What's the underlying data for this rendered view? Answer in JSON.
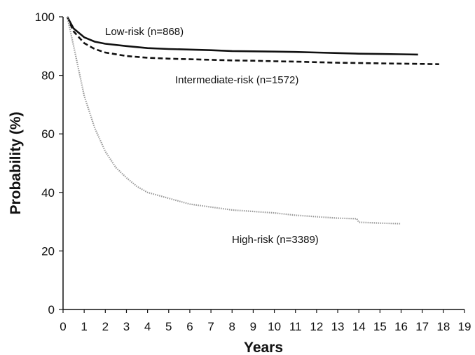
{
  "chart_data": {
    "type": "line",
    "title": "",
    "xlabel": "Years",
    "ylabel": "Probability (%)",
    "xlim": [
      0,
      19
    ],
    "ylim": [
      0,
      100
    ],
    "x_ticks": [
      "0",
      "1",
      "2",
      "3",
      "4",
      "5",
      "6",
      "7",
      "8",
      "9",
      "10",
      "11",
      "12",
      "13",
      "14",
      "15",
      "16",
      "17",
      "18",
      "19"
    ],
    "y_ticks": [
      "0",
      "20",
      "40",
      "60",
      "80",
      "100"
    ],
    "grid": false,
    "legend": "none",
    "series": [
      {
        "name": "Low-risk (n=868)",
        "line_style": "solid",
        "color": "#111111",
        "x": [
          0.2,
          0.5,
          1,
          1.5,
          2,
          3,
          4,
          5,
          6,
          7,
          8,
          9,
          10,
          11,
          12,
          13,
          14,
          15,
          16,
          16.8
        ],
        "y": [
          100,
          96,
          93,
          91.5,
          90.8,
          90,
          89.3,
          89,
          88.8,
          88.6,
          88.3,
          88.2,
          88.1,
          88,
          87.8,
          87.6,
          87.4,
          87.3,
          87.2,
          87.1
        ]
      },
      {
        "name": "Intermediate-risk (n=1572)",
        "line_style": "dashed",
        "color": "#111111",
        "x": [
          0.2,
          0.5,
          1,
          1.5,
          2,
          3,
          4,
          5,
          6,
          7,
          8,
          9,
          10,
          11,
          12,
          13,
          14,
          15,
          16,
          17,
          17.8
        ],
        "y": [
          100,
          95,
          91,
          89,
          87.8,
          86.6,
          86,
          85.7,
          85.5,
          85.3,
          85.1,
          85,
          84.8,
          84.7,
          84.5,
          84.3,
          84.2,
          84.1,
          84,
          83.9,
          83.8
        ]
      },
      {
        "name": "High-risk (n=3389)",
        "line_style": "dotted",
        "color": "#9a9a9a",
        "x": [
          0.2,
          0.5,
          1,
          1.5,
          2,
          2.5,
          3,
          3.5,
          4,
          5,
          6,
          7,
          8,
          9,
          10,
          11,
          12,
          13,
          13.9,
          14,
          15,
          16
        ],
        "y": [
          100,
          90,
          73,
          62,
          54,
          48.5,
          45,
          42,
          40,
          38,
          36,
          35,
          34,
          33.5,
          33,
          32.2,
          31.7,
          31.2,
          31,
          29.8,
          29.5,
          29.3
        ]
      }
    ]
  }
}
